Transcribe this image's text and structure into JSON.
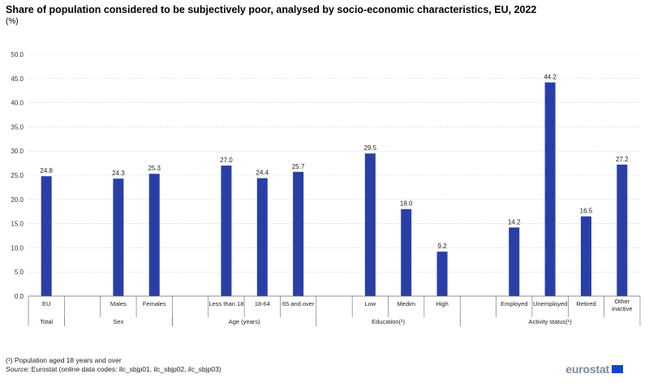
{
  "title": "Share of population considered to be subjectively poor, analysed by socio-economic characteristics, EU, 2022",
  "unit": "(%)",
  "footnote": "(¹) Population aged 18 years and over",
  "source_label": "Source:",
  "source_text": " Eurostat (online data codes: ilc_sbjp01, ilc_sbjp02, ilc_sbjp03)",
  "logo_text": "eurostat",
  "colors": {
    "bar": "#2a3fa6",
    "grid": "#cccccc",
    "axis": "#666666"
  },
  "chart_data": {
    "type": "bar",
    "ylim": [
      0,
      50
    ],
    "yticks": [
      "0.0",
      "5.0",
      "10.0",
      "15.0",
      "20.0",
      "25.0",
      "30.0",
      "35.0",
      "40.0",
      "45.0",
      "50.0"
    ],
    "categories": [
      "EU",
      "",
      "Males",
      "Females",
      "",
      "Less than 18",
      "18-64",
      "65 and over",
      "",
      "Low",
      "Medim",
      "High",
      "",
      "Employed",
      "Unemployed",
      "Retired",
      "Other inactive"
    ],
    "values": [
      24.8,
      null,
      24.3,
      25.3,
      null,
      27.0,
      24.4,
      25.7,
      null,
      29.5,
      18.0,
      9.2,
      null,
      14.2,
      44.2,
      16.5,
      27.2
    ],
    "value_labels": [
      "24.8",
      "",
      "24.3",
      "25.3",
      "",
      "27.0",
      "24.4",
      "25.7",
      "",
      "29.5",
      "18.0",
      "9.2",
      "",
      "14.2",
      "44.2",
      "16.5",
      "27.2"
    ],
    "groups": [
      {
        "label": "Total",
        "start": 0,
        "end": 0
      },
      {
        "label": "Sex",
        "start": 1,
        "end": 3
      },
      {
        "label": "Age (years)",
        "start": 4,
        "end": 7
      },
      {
        "label": "Education(¹)",
        "start": 8,
        "end": 11
      },
      {
        "label": "Activity status(¹)",
        "start": 12,
        "end": 16
      }
    ],
    "grid": true
  }
}
